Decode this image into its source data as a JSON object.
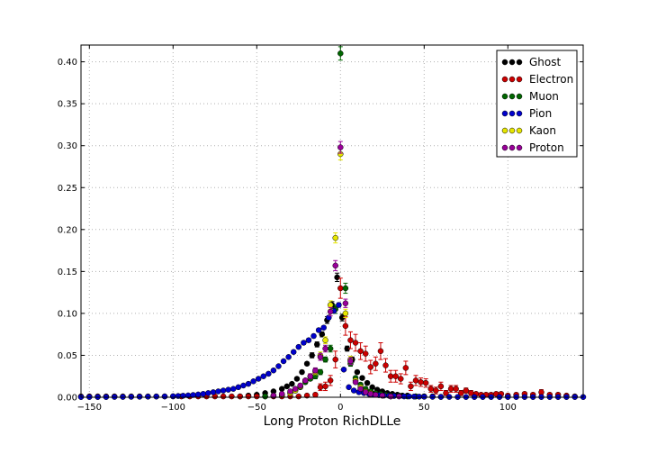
{
  "chart_data": {
    "type": "scatter",
    "xlabel": "Long Proton RichDLLe",
    "ylabel": "",
    "xlim": [
      -155,
      145
    ],
    "ylim": [
      0,
      0.42
    ],
    "grid": true,
    "legend_position": "top-right",
    "xticks": [
      "−150",
      "−100",
      "−50",
      "0",
      "50",
      "100"
    ],
    "xtick_values": [
      -150,
      -100,
      -50,
      0,
      50,
      100
    ],
    "yticks": [
      "0.00",
      "0.05",
      "0.10",
      "0.15",
      "0.20",
      "0.25",
      "0.30",
      "0.35",
      "0.40"
    ],
    "ytick_values": [
      0,
      0.05,
      0.1,
      0.15,
      0.2,
      0.25,
      0.3,
      0.35,
      0.4
    ],
    "series": [
      {
        "name": "Ghost",
        "color": "#000000",
        "x": [
          -60,
          -55,
          -50,
          -45,
          -40,
          -35,
          -32,
          -29,
          -26,
          -23,
          -20,
          -17,
          -14,
          -11,
          -8,
          -5,
          -2,
          1,
          4,
          7,
          10,
          13,
          16,
          19,
          22,
          25,
          28,
          31,
          34,
          37,
          40,
          45,
          50,
          55,
          60
        ],
        "y": [
          0.001,
          0.002,
          0.003,
          0.005,
          0.007,
          0.01,
          0.013,
          0.016,
          0.022,
          0.03,
          0.04,
          0.05,
          0.063,
          0.075,
          0.092,
          0.11,
          0.143,
          0.095,
          0.058,
          0.045,
          0.03,
          0.023,
          0.017,
          0.012,
          0.009,
          0.007,
          0.005,
          0.004,
          0.003,
          0.002,
          0.002,
          0.001,
          0.001,
          0.001,
          0.0005
        ],
        "err": [
          0.0005,
          0.0005,
          0.0008,
          0.001,
          0.001,
          0.001,
          0.0015,
          0.0015,
          0.002,
          0.002,
          0.002,
          0.003,
          0.003,
          0.003,
          0.004,
          0.004,
          0.005,
          0.004,
          0.003,
          0.003,
          0.002,
          0.002,
          0.002,
          0.001,
          0.001,
          0.001,
          0.001,
          0.001,
          0.0005,
          0.0005,
          0.0005,
          0.0005,
          0.0005,
          0.0005,
          0.0005
        ]
      },
      {
        "name": "Electron",
        "color": "#cc0000",
        "x": [
          -155,
          -150,
          -145,
          -140,
          -135,
          -130,
          -125,
          -120,
          -115,
          -110,
          -105,
          -100,
          -95,
          -90,
          -85,
          -80,
          -75,
          -70,
          -65,
          -60,
          -55,
          -50,
          -45,
          -40,
          -35,
          -30,
          -25,
          -20,
          -15,
          -12,
          -9,
          -6,
          -3,
          0,
          3,
          6,
          9,
          12,
          15,
          18,
          21,
          24,
          27,
          30,
          33,
          36,
          39,
          42,
          45,
          48,
          51,
          54,
          57,
          60,
          63,
          66,
          69,
          72,
          75,
          78,
          81,
          84,
          87,
          90,
          93,
          96,
          100,
          105,
          110,
          115,
          120,
          125,
          130,
          135,
          140
        ],
        "y": [
          0.001,
          0.001,
          0.001,
          0.001,
          0.001,
          0.001,
          0.001,
          0.001,
          0.001,
          0.001,
          0.001,
          0.001,
          0.001,
          0.001,
          0.001,
          0.001,
          0.001,
          0.001,
          0.001,
          0.001,
          0.001,
          0.001,
          0.001,
          0.001,
          0.001,
          0.001,
          0.001,
          0.002,
          0.003,
          0.012,
          0.013,
          0.02,
          0.045,
          0.13,
          0.085,
          0.068,
          0.065,
          0.055,
          0.052,
          0.036,
          0.04,
          0.055,
          0.038,
          0.025,
          0.025,
          0.022,
          0.035,
          0.013,
          0.02,
          0.018,
          0.017,
          0.01,
          0.008,
          0.013,
          0.005,
          0.01,
          0.01,
          0.005,
          0.008,
          0.005,
          0.004,
          0.003,
          0.003,
          0.003,
          0.004,
          0.004,
          0.002,
          0.003,
          0.004,
          0.003,
          0.006,
          0.003,
          0.003,
          0.002,
          0.001
        ],
        "err": [
          0.0005,
          0.0005,
          0.0005,
          0.0005,
          0.0005,
          0.0005,
          0.0005,
          0.0005,
          0.0005,
          0.0005,
          0.0005,
          0.0005,
          0.0005,
          0.0005,
          0.0005,
          0.0005,
          0.0005,
          0.0005,
          0.0005,
          0.0005,
          0.0005,
          0.0005,
          0.0005,
          0.0005,
          0.0005,
          0.0005,
          0.0005,
          0.001,
          0.002,
          0.004,
          0.005,
          0.006,
          0.01,
          0.012,
          0.011,
          0.01,
          0.01,
          0.01,
          0.009,
          0.008,
          0.008,
          0.01,
          0.008,
          0.007,
          0.007,
          0.006,
          0.008,
          0.005,
          0.006,
          0.005,
          0.005,
          0.004,
          0.004,
          0.005,
          0.003,
          0.004,
          0.004,
          0.003,
          0.003,
          0.003,
          0.002,
          0.002,
          0.002,
          0.002,
          0.002,
          0.002,
          0.002,
          0.002,
          0.002,
          0.002,
          0.003,
          0.002,
          0.002,
          0.001,
          0.001
        ]
      },
      {
        "name": "Muon",
        "color": "#006600",
        "x": [
          -45,
          -40,
          -35,
          -30,
          -27,
          -24,
          -21,
          -18,
          -15,
          -12,
          -9,
          -6,
          -3,
          0,
          3,
          6,
          9,
          12,
          15,
          18,
          21,
          24,
          27,
          30,
          35,
          40,
          45,
          50
        ],
        "y": [
          0.001,
          0.002,
          0.003,
          0.005,
          0.008,
          0.012,
          0.018,
          0.022,
          0.025,
          0.03,
          0.045,
          0.058,
          0.105,
          0.41,
          0.13,
          0.04,
          0.023,
          0.015,
          0.01,
          0.007,
          0.005,
          0.004,
          0.003,
          0.002,
          0.002,
          0.001,
          0.001,
          0.001
        ],
        "err": [
          0.0005,
          0.0005,
          0.001,
          0.001,
          0.001,
          0.002,
          0.002,
          0.002,
          0.003,
          0.003,
          0.003,
          0.004,
          0.005,
          0.008,
          0.006,
          0.003,
          0.002,
          0.002,
          0.002,
          0.001,
          0.001,
          0.001,
          0.001,
          0.0005,
          0.0005,
          0.0005,
          0.0005,
          0.0005
        ]
      },
      {
        "name": "Pion",
        "color": "#0000cc",
        "x": [
          -155,
          -150,
          -145,
          -140,
          -135,
          -130,
          -125,
          -120,
          -115,
          -110,
          -105,
          -100,
          -97,
          -94,
          -91,
          -88,
          -85,
          -82,
          -79,
          -76,
          -73,
          -70,
          -67,
          -64,
          -61,
          -58,
          -55,
          -52,
          -49,
          -46,
          -43,
          -40,
          -37,
          -34,
          -31,
          -28,
          -25,
          -22,
          -19,
          -16,
          -13,
          -10,
          -7,
          -4,
          -1,
          2,
          5,
          8,
          11,
          14,
          17,
          20,
          23,
          26,
          29,
          32,
          35,
          38,
          41,
          44,
          47,
          50,
          55,
          60,
          65,
          70,
          75,
          80,
          85,
          90,
          95,
          100,
          105,
          110,
          115,
          120,
          125,
          130,
          135,
          140,
          145
        ],
        "y": [
          0.0003,
          0.0003,
          0.0003,
          0.0003,
          0.0004,
          0.0004,
          0.0005,
          0.0006,
          0.0007,
          0.0008,
          0.001,
          0.0012,
          0.0015,
          0.0018,
          0.0022,
          0.0027,
          0.0033,
          0.004,
          0.005,
          0.006,
          0.007,
          0.008,
          0.009,
          0.01,
          0.012,
          0.014,
          0.016,
          0.019,
          0.022,
          0.025,
          0.028,
          0.032,
          0.037,
          0.043,
          0.048,
          0.054,
          0.06,
          0.065,
          0.068,
          0.073,
          0.08,
          0.083,
          0.095,
          0.103,
          0.11,
          0.033,
          0.012,
          0.008,
          0.006,
          0.005,
          0.004,
          0.003,
          0.0025,
          0.002,
          0.0018,
          0.0015,
          0.0012,
          0.001,
          0.001,
          0.0008,
          0.0007,
          0.0006,
          0.0005,
          0.0004,
          0.0004,
          0.0003,
          0.0003,
          0.0003,
          0.0003,
          0.0003,
          0.0003,
          0.0003,
          0.0003,
          0.0003,
          0.0003,
          0.0003,
          0.0003,
          0.0003,
          0.0003,
          0.0003,
          0.0003
        ],
        "err": [
          0.0002,
          0.0002,
          0.0002,
          0.0002,
          0.0002,
          0.0002,
          0.0002,
          0.0002,
          0.0002,
          0.0002,
          0.0003,
          0.0003,
          0.0003,
          0.0004,
          0.0004,
          0.0005,
          0.0005,
          0.0006,
          0.0006,
          0.0007,
          0.0007,
          0.0008,
          0.0008,
          0.0009,
          0.001,
          0.001,
          0.001,
          0.001,
          0.0012,
          0.0012,
          0.0013,
          0.0014,
          0.0015,
          0.0016,
          0.0017,
          0.0018,
          0.0019,
          0.002,
          0.002,
          0.002,
          0.002,
          0.002,
          0.002,
          0.0025,
          0.0025,
          0.0015,
          0.001,
          0.0008,
          0.0007,
          0.0006,
          0.0005,
          0.0005,
          0.0004,
          0.0004,
          0.0004,
          0.0003,
          0.0003,
          0.0003,
          0.0003,
          0.0003,
          0.0002,
          0.0002,
          0.0002,
          0.0002,
          0.0002,
          0.0002,
          0.0002,
          0.0002,
          0.0002,
          0.0002,
          0.0002,
          0.0002,
          0.0002,
          0.0002,
          0.0002,
          0.0002,
          0.0002,
          0.0002,
          0.0002,
          0.0002,
          0.0002
        ]
      },
      {
        "name": "Kaon",
        "color": "#e6e600",
        "x": [
          -35,
          -30,
          -27,
          -24,
          -21,
          -18,
          -15,
          -12,
          -9,
          -6,
          -3,
          0,
          3,
          6,
          9,
          12,
          15,
          18,
          21,
          25,
          30
        ],
        "y": [
          0.003,
          0.005,
          0.008,
          0.013,
          0.02,
          0.025,
          0.03,
          0.05,
          0.068,
          0.11,
          0.19,
          0.29,
          0.1,
          0.045,
          0.02,
          0.012,
          0.007,
          0.005,
          0.003,
          0.002,
          0.001
        ],
        "err": [
          0.001,
          0.001,
          0.001,
          0.002,
          0.002,
          0.003,
          0.003,
          0.004,
          0.004,
          0.005,
          0.006,
          0.007,
          0.005,
          0.004,
          0.002,
          0.002,
          0.001,
          0.001,
          0.001,
          0.001,
          0.0005
        ],
        "note": ""
      },
      {
        "name": "Proton",
        "color": "#990099",
        "x": [
          -40,
          -35,
          -30,
          -27,
          -24,
          -21,
          -18,
          -15,
          -12,
          -9,
          -6,
          -3,
          0,
          3,
          6,
          9,
          12,
          15,
          18,
          21,
          25,
          30,
          35
        ],
        "y": [
          0.002,
          0.004,
          0.007,
          0.01,
          0.014,
          0.02,
          0.025,
          0.032,
          0.048,
          0.058,
          0.102,
          0.157,
          0.298,
          0.112,
          0.043,
          0.018,
          0.01,
          0.006,
          0.004,
          0.003,
          0.002,
          0.001,
          0.001
        ],
        "err": [
          0.0005,
          0.001,
          0.001,
          0.001,
          0.002,
          0.002,
          0.003,
          0.003,
          0.004,
          0.004,
          0.005,
          0.006,
          0.007,
          0.005,
          0.004,
          0.002,
          0.002,
          0.001,
          0.001,
          0.001,
          0.001,
          0.0005,
          0.0005
        ]
      }
    ]
  }
}
